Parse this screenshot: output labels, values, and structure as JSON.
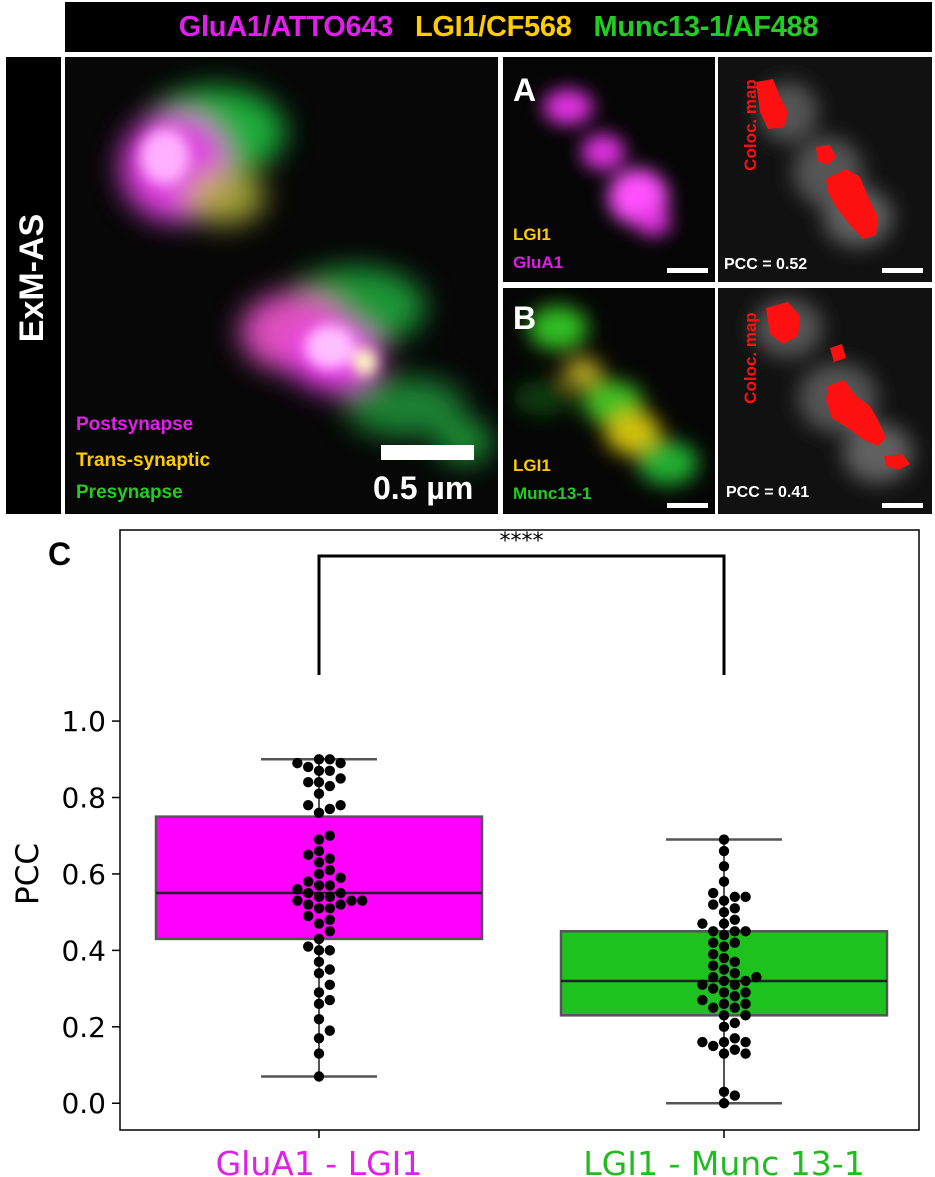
{
  "banner": {
    "items": [
      {
        "text": "GluA1/ATTO643",
        "color": "#e020e8"
      },
      {
        "text": "LGI1/CF568",
        "color": "#ffcc00"
      },
      {
        "text": "Munc13-1/AF488",
        "color": "#22cc22"
      }
    ]
  },
  "side_label": "ExM-AS",
  "main_panel": {
    "legend": [
      {
        "text": "Postsynapse",
        "color": "#e020e8"
      },
      {
        "text": "Trans-synaptic",
        "color": "#ffcc00"
      },
      {
        "text": "Presynapse",
        "color": "#22cc22"
      }
    ],
    "scale_label": "0.5 µm"
  },
  "panel_a": {
    "letter": "A",
    "channels": [
      {
        "text": "LGI1",
        "color": "#ffcc00"
      },
      {
        "text": "GluA1",
        "color": "#e020e8"
      }
    ],
    "map_label": "Coloc. map",
    "pcc_text": "PCC = 0.52"
  },
  "panel_b": {
    "letter": "B",
    "channels": [
      {
        "text": "LGI1",
        "color": "#ffcc00"
      },
      {
        "text": "Munc13-1",
        "color": "#22cc22"
      }
    ],
    "map_label": "Coloc. map",
    "pcc_text": "PCC = 0.41"
  },
  "panel_c_letter": "C",
  "chart_data": {
    "type": "box",
    "ylabel": "PCC",
    "ylim": [
      -0.07,
      1.5
    ],
    "yticks": [
      "0.0",
      "0.2",
      "0.4",
      "0.6",
      "0.8",
      "1.0"
    ],
    "significance": "****",
    "categories": [
      "GluA1 - LGI1",
      "LGI1 - Munc 13-1"
    ],
    "category_colors": [
      "#e020e8",
      "#22bb22"
    ],
    "boxes": [
      {
        "whisker_low": 0.07,
        "q1": 0.43,
        "median": 0.55,
        "q3": 0.75,
        "whisker_high": 0.9,
        "fill": "#ff00ff"
      },
      {
        "whisker_low": 0.0,
        "q1": 0.23,
        "median": 0.32,
        "q3": 0.45,
        "whisker_high": 0.69,
        "fill": "#1ec21e"
      }
    ],
    "points": [
      [
        0.07,
        0.13,
        0.17,
        0.19,
        0.22,
        0.26,
        0.27,
        0.29,
        0.31,
        0.34,
        0.35,
        0.37,
        0.4,
        0.4,
        0.41,
        0.43,
        0.45,
        0.47,
        0.48,
        0.49,
        0.51,
        0.51,
        0.52,
        0.52,
        0.53,
        0.53,
        0.53,
        0.54,
        0.54,
        0.55,
        0.55,
        0.56,
        0.57,
        0.57,
        0.58,
        0.59,
        0.6,
        0.61,
        0.63,
        0.64,
        0.65,
        0.66,
        0.69,
        0.7,
        0.76,
        0.77,
        0.78,
        0.78,
        0.81,
        0.83,
        0.84,
        0.84,
        0.85,
        0.87,
        0.87,
        0.88,
        0.89,
        0.89,
        0.9,
        0.9
      ],
      [
        0.0,
        0.02,
        0.03,
        0.13,
        0.13,
        0.14,
        0.15,
        0.16,
        0.16,
        0.16,
        0.17,
        0.2,
        0.21,
        0.23,
        0.23,
        0.25,
        0.25,
        0.26,
        0.26,
        0.27,
        0.28,
        0.29,
        0.29,
        0.3,
        0.31,
        0.31,
        0.32,
        0.32,
        0.33,
        0.33,
        0.34,
        0.35,
        0.36,
        0.37,
        0.38,
        0.39,
        0.41,
        0.42,
        0.42,
        0.44,
        0.45,
        0.45,
        0.45,
        0.47,
        0.47,
        0.48,
        0.5,
        0.51,
        0.52,
        0.53,
        0.54,
        0.54,
        0.55,
        0.58,
        0.62,
        0.66,
        0.69
      ]
    ]
  }
}
